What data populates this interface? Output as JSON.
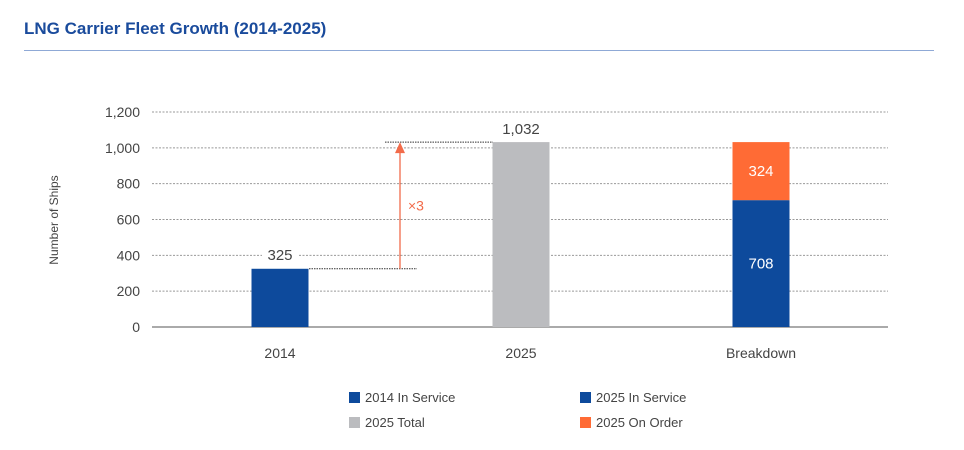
{
  "chart_data": {
    "type": "bar",
    "title": "LNG Carrier Fleet Growth (2014-2025)",
    "xlabel": "",
    "ylabel": "Number of Ships",
    "ylim": [
      0,
      1200
    ],
    "yticks": [
      0,
      200,
      400,
      600,
      800,
      1000,
      1200
    ],
    "ytick_labels": [
      "0",
      "200",
      "400",
      "600",
      "800",
      "1,000",
      "1,200"
    ],
    "grid": true,
    "legend_placement": "bottom",
    "categories": [
      "2014",
      "2025",
      "Breakdown"
    ],
    "series": [
      {
        "name": "2014 In Service",
        "color": "#0d4a9c",
        "values": [
          325,
          null,
          null
        ]
      },
      {
        "name": "2025 Total",
        "color": "#bbbcbf",
        "values": [
          null,
          1032,
          null
        ]
      },
      {
        "name": "2025 In Service",
        "color": "#0d4a9c",
        "values": [
          null,
          null,
          708
        ]
      },
      {
        "name": "2025 On Order",
        "color": "#ff6b35",
        "values": [
          null,
          null,
          324
        ]
      }
    ],
    "data_labels": {
      "2014": "325",
      "2025": "1,032",
      "in_service": "708",
      "on_order": "324"
    },
    "annotation": {
      "text": "×3",
      "from": 325,
      "to": 1032,
      "color": "#f26b4a"
    }
  }
}
